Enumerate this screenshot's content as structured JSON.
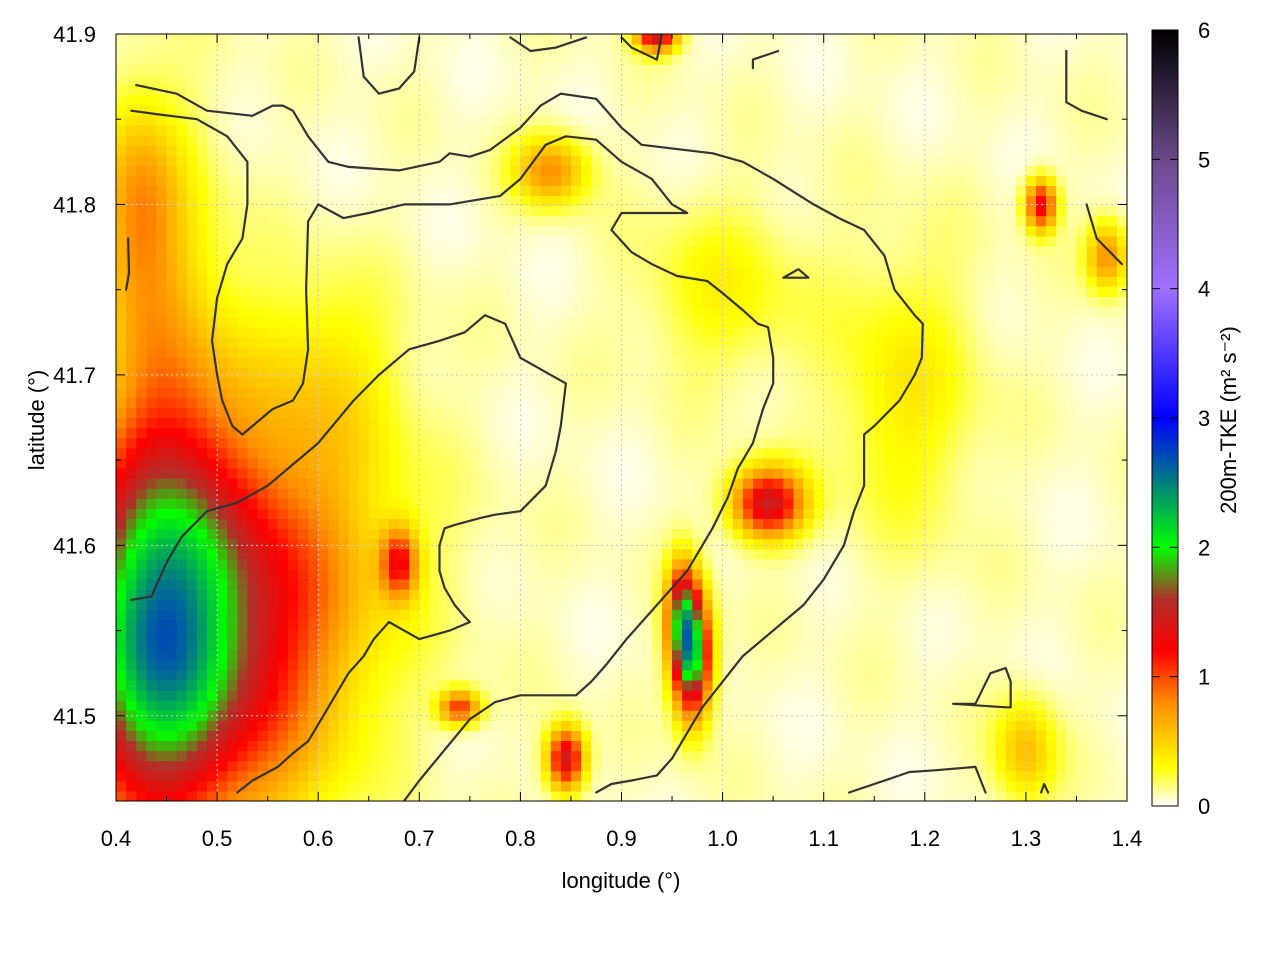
{
  "chart_data": {
    "type": "heatmap",
    "title": "",
    "xlabel": "longitude (°)",
    "ylabel": "latitude (°)",
    "colorbar_label": "200m-TKE (m² s⁻²)",
    "xlim": [
      0.4,
      1.4
    ],
    "ylim": [
      41.45,
      41.9
    ],
    "xticks": [
      "0.4",
      "0.5",
      "0.6",
      "0.7",
      "0.8",
      "0.9",
      "1.0",
      "1.1",
      "1.2",
      "1.3",
      "1.4"
    ],
    "xtick_values": [
      0.4,
      0.5,
      0.6,
      0.7,
      0.8,
      0.9,
      1.0,
      1.1,
      1.2,
      1.3,
      1.4
    ],
    "yticks": [
      "41.5",
      "41.6",
      "41.7",
      "41.8",
      "41.9"
    ],
    "ytick_values": [
      41.5,
      41.6,
      41.7,
      41.8,
      41.9
    ],
    "colorbar_range": [
      0,
      6
    ],
    "colorbar_ticks": [
      "0",
      "1",
      "2",
      "3",
      "4",
      "5",
      "6"
    ],
    "colorbar_tick_values": [
      0,
      1,
      2,
      3,
      4,
      5,
      6
    ],
    "grid": true,
    "colormap": [
      {
        "v": 0.0,
        "c": "#ffffff"
      },
      {
        "v": 0.3,
        "c": "#ffff00"
      },
      {
        "v": 0.8,
        "c": "#ff8c00"
      },
      {
        "v": 1.2,
        "c": "#ff0000"
      },
      {
        "v": 1.6,
        "c": "#b0302a"
      },
      {
        "v": 2.0,
        "c": "#00ff00"
      },
      {
        "v": 3.0,
        "c": "#0000ff"
      },
      {
        "v": 4.0,
        "c": "#a070ff"
      },
      {
        "v": 5.0,
        "c": "#6a4a8a"
      },
      {
        "v": 6.0,
        "c": "#000000"
      }
    ],
    "tke_field": {
      "background": 0.12,
      "hotspots": [
        {
          "lon": 0.49,
          "lat": 41.52,
          "rx": 0.12,
          "ry": 0.09,
          "val": 1.15
        },
        {
          "lon": 0.43,
          "lat": 41.54,
          "rx": 0.07,
          "ry": 0.1,
          "val": 1.2
        },
        {
          "lon": 0.52,
          "lat": 41.6,
          "rx": 0.14,
          "ry": 0.08,
          "val": 0.75
        },
        {
          "lon": 0.45,
          "lat": 41.68,
          "rx": 0.06,
          "ry": 0.13,
          "val": 0.6
        },
        {
          "lon": 0.42,
          "lat": 41.8,
          "rx": 0.04,
          "ry": 0.06,
          "val": 0.55
        },
        {
          "lon": 0.68,
          "lat": 41.59,
          "rx": 0.018,
          "ry": 0.02,
          "val": 1.0
        },
        {
          "lon": 0.74,
          "lat": 41.505,
          "rx": 0.02,
          "ry": 0.01,
          "val": 1.0
        },
        {
          "lon": 0.845,
          "lat": 41.475,
          "rx": 0.018,
          "ry": 0.018,
          "val": 1.4
        },
        {
          "lon": 0.83,
          "lat": 41.82,
          "rx": 0.035,
          "ry": 0.02,
          "val": 0.7
        },
        {
          "lon": 0.97,
          "lat": 41.535,
          "rx": 0.018,
          "ry": 0.035,
          "val": 2.0
        },
        {
          "lon": 0.96,
          "lat": 41.56,
          "rx": 0.015,
          "ry": 0.03,
          "val": 1.3
        },
        {
          "lon": 1.045,
          "lat": 41.625,
          "rx": 0.035,
          "ry": 0.02,
          "val": 1.4
        },
        {
          "lon": 0.935,
          "lat": 41.9,
          "rx": 0.02,
          "ry": 0.01,
          "val": 1.4
        },
        {
          "lon": 1.315,
          "lat": 41.8,
          "rx": 0.015,
          "ry": 0.015,
          "val": 1.2
        },
        {
          "lon": 1.38,
          "lat": 41.77,
          "rx": 0.02,
          "ry": 0.02,
          "val": 0.7
        },
        {
          "lon": 1.3,
          "lat": 41.48,
          "rx": 0.03,
          "ry": 0.03,
          "val": 0.5
        },
        {
          "lon": 1.0,
          "lat": 41.75,
          "rx": 0.08,
          "ry": 0.05,
          "val": 0.25
        },
        {
          "lon": 1.18,
          "lat": 41.69,
          "rx": 0.07,
          "ry": 0.08,
          "val": 0.3
        },
        {
          "lon": 0.6,
          "lat": 41.7,
          "rx": 0.08,
          "ry": 0.06,
          "val": 0.3
        }
      ]
    },
    "contours": [
      [
        [
          0.42,
          41.87
        ],
        [
          0.46,
          41.865
        ],
        [
          0.49,
          41.855
        ],
        [
          0.535,
          41.852
        ],
        [
          0.555,
          41.858
        ],
        [
          0.565,
          41.858
        ],
        [
          0.575,
          41.855
        ],
        [
          0.59,
          41.84
        ],
        [
          0.61,
          41.825
        ],
        [
          0.63,
          41.822
        ],
        [
          0.68,
          41.82
        ],
        [
          0.72,
          41.825
        ],
        [
          0.73,
          41.83
        ],
        [
          0.75,
          41.828
        ],
        [
          0.77,
          41.832
        ],
        [
          0.8,
          41.845
        ],
        [
          0.82,
          41.858
        ],
        [
          0.84,
          41.865
        ],
        [
          0.875,
          41.862
        ],
        [
          0.9,
          41.845
        ],
        [
          0.92,
          41.835
        ],
        [
          0.99,
          41.83
        ],
        [
          1.02,
          41.825
        ],
        [
          1.05,
          41.815
        ],
        [
          1.09,
          41.8
        ],
        [
          1.115,
          41.792
        ],
        [
          1.14,
          41.785
        ],
        [
          1.16,
          41.77
        ],
        [
          1.17,
          41.75
        ],
        [
          1.19,
          41.735
        ],
        [
          1.198,
          41.73
        ],
        [
          1.197,
          41.71
        ],
        [
          1.19,
          41.7
        ],
        [
          1.175,
          41.685
        ],
        [
          1.15,
          41.67
        ],
        [
          1.14,
          41.665
        ],
        [
          1.14,
          41.635
        ],
        [
          1.13,
          41.62
        ],
        [
          1.12,
          41.6
        ],
        [
          1.1,
          41.58
        ],
        [
          1.08,
          41.565
        ],
        [
          1.06,
          41.555
        ],
        [
          1.04,
          41.545
        ],
        [
          1.02,
          41.535
        ],
        [
          1.0,
          41.52
        ],
        [
          0.98,
          41.505
        ],
        [
          0.965,
          41.49
        ],
        [
          0.95,
          41.475
        ],
        [
          0.935,
          41.465
        ],
        [
          0.91,
          41.462
        ],
        [
          0.89,
          41.46
        ],
        [
          0.875,
          41.455
        ]
      ],
      [
        [
          0.415,
          41.855
        ],
        [
          0.44,
          41.853
        ],
        [
          0.48,
          41.85
        ],
        [
          0.51,
          41.84
        ],
        [
          0.53,
          41.825
        ],
        [
          0.53,
          41.8
        ],
        [
          0.525,
          41.78
        ],
        [
          0.51,
          41.765
        ],
        [
          0.5,
          41.745
        ],
        [
          0.495,
          41.72
        ],
        [
          0.5,
          41.7
        ],
        [
          0.505,
          41.685
        ],
        [
          0.515,
          41.67
        ],
        [
          0.525,
          41.665
        ],
        [
          0.535,
          41.67
        ],
        [
          0.555,
          41.68
        ],
        [
          0.575,
          41.685
        ],
        [
          0.585,
          41.695
        ],
        [
          0.59,
          41.715
        ],
        [
          0.588,
          41.75
        ],
        [
          0.59,
          41.79
        ],
        [
          0.6,
          41.8
        ],
        [
          0.625,
          41.792
        ],
        [
          0.65,
          41.795
        ],
        [
          0.685,
          41.8
        ],
        [
          0.73,
          41.8
        ],
        [
          0.78,
          41.805
        ],
        [
          0.8,
          41.815
        ],
        [
          0.825,
          41.835
        ],
        [
          0.845,
          41.84
        ],
        [
          0.875,
          41.838
        ],
        [
          0.9,
          41.825
        ],
        [
          0.93,
          41.815
        ],
        [
          0.95,
          41.8
        ],
        [
          0.965,
          41.795
        ],
        [
          0.92,
          41.795
        ],
        [
          0.9,
          41.795
        ],
        [
          0.89,
          41.785
        ],
        [
          0.91,
          41.772
        ],
        [
          0.93,
          41.765
        ],
        [
          0.955,
          41.758
        ],
        [
          0.985,
          41.755
        ],
        [
          1.0,
          41.748
        ],
        [
          1.02,
          41.738
        ],
        [
          1.035,
          41.73
        ],
        [
          1.045,
          41.728
        ],
        [
          1.05,
          41.71
        ],
        [
          1.05,
          41.695
        ],
        [
          1.04,
          41.68
        ],
        [
          1.03,
          41.66
        ],
        [
          1.015,
          41.645
        ],
        [
          1.005,
          41.628
        ],
        [
          0.99,
          41.61
        ],
        [
          0.975,
          41.595
        ],
        [
          0.965,
          41.585
        ],
        [
          0.95,
          41.575
        ],
        [
          0.935,
          41.565
        ],
        [
          0.905,
          41.545
        ],
        [
          0.885,
          41.53
        ],
        [
          0.87,
          41.52
        ],
        [
          0.855,
          41.512
        ],
        [
          0.8,
          41.512
        ],
        [
          0.775,
          41.508
        ],
        [
          0.75,
          41.498
        ],
        [
          0.725,
          41.48
        ],
        [
          0.7,
          41.462
        ],
        [
          0.685,
          41.45
        ]
      ],
      [
        [
          0.412,
          41.78
        ],
        [
          0.413,
          41.76
        ],
        [
          0.41,
          41.75
        ]
      ],
      [
        [
          0.415,
          41.568
        ],
        [
          0.435,
          41.57
        ],
        [
          0.45,
          41.59
        ],
        [
          0.465,
          41.605
        ],
        [
          0.49,
          41.62
        ],
        [
          0.52,
          41.625
        ],
        [
          0.55,
          41.635
        ],
        [
          0.57,
          41.645
        ],
        [
          0.6,
          41.66
        ],
        [
          0.635,
          41.685
        ],
        [
          0.66,
          41.7
        ],
        [
          0.69,
          41.715
        ],
        [
          0.72,
          41.72
        ],
        [
          0.745,
          41.725
        ],
        [
          0.765,
          41.735
        ],
        [
          0.785,
          41.73
        ],
        [
          0.8,
          41.71
        ],
        [
          0.83,
          41.7
        ],
        [
          0.845,
          41.695
        ],
        [
          0.84,
          41.67
        ],
        [
          0.835,
          41.655
        ],
        [
          0.825,
          41.635
        ],
        [
          0.8,
          41.62
        ],
        [
          0.775,
          41.618
        ],
        [
          0.76,
          41.616
        ],
        [
          0.735,
          41.612
        ],
        [
          0.725,
          41.61
        ],
        [
          0.72,
          41.6
        ],
        [
          0.72,
          41.585
        ],
        [
          0.725,
          41.575
        ],
        [
          0.735,
          41.565
        ],
        [
          0.745,
          41.558
        ],
        [
          0.75,
          41.555
        ],
        [
          0.73,
          41.55
        ],
        [
          0.7,
          41.545
        ],
        [
          0.685,
          41.55
        ],
        [
          0.67,
          41.555
        ],
        [
          0.655,
          41.545
        ],
        [
          0.645,
          41.535
        ],
        [
          0.63,
          41.525
        ],
        [
          0.615,
          41.51
        ],
        [
          0.605,
          41.5
        ],
        [
          0.59,
          41.485
        ],
        [
          0.575,
          41.478
        ],
        [
          0.56,
          41.47
        ],
        [
          0.535,
          41.462
        ],
        [
          0.52,
          41.455
        ]
      ],
      [
        [
          0.64,
          41.898
        ],
        [
          0.645,
          41.875
        ],
        [
          0.66,
          41.865
        ],
        [
          0.68,
          41.868
        ],
        [
          0.695,
          41.878
        ],
        [
          0.7,
          41.898
        ]
      ],
      [
        [
          0.79,
          41.898
        ],
        [
          0.81,
          41.89
        ],
        [
          0.835,
          41.892
        ],
        [
          0.865,
          41.898
        ]
      ],
      [
        [
          0.9,
          41.898
        ],
        [
          0.91,
          41.892
        ],
        [
          0.935,
          41.885
        ],
        [
          0.94,
          41.9
        ]
      ],
      [
        [
          1.03,
          41.88
        ],
        [
          1.03,
          41.885
        ],
        [
          1.055,
          41.89
        ]
      ],
      [
        [
          1.36,
          41.8
        ],
        [
          1.37,
          41.78
        ],
        [
          1.395,
          41.765
        ]
      ],
      [
        [
          1.34,
          41.89
        ],
        [
          1.34,
          41.86
        ],
        [
          1.355,
          41.855
        ],
        [
          1.38,
          41.85
        ]
      ],
      [
        [
          1.06,
          41.757
        ],
        [
          1.075,
          41.762
        ],
        [
          1.085,
          41.757
        ],
        [
          1.06,
          41.757
        ]
      ],
      [
        [
          1.228,
          41.507
        ],
        [
          1.25,
          41.507
        ],
        [
          1.265,
          41.525
        ],
        [
          1.28,
          41.528
        ],
        [
          1.285,
          41.52
        ],
        [
          1.285,
          41.505
        ],
        [
          1.28,
          41.505
        ],
        [
          1.228,
          41.507
        ]
      ],
      [
        [
          1.125,
          41.455
        ],
        [
          1.15,
          41.46
        ],
        [
          1.185,
          41.467
        ],
        [
          1.21,
          41.468
        ],
        [
          1.25,
          41.47
        ],
        [
          1.26,
          41.455
        ]
      ],
      [
        [
          1.315,
          41.455
        ],
        [
          1.318,
          41.46
        ],
        [
          1.322,
          41.455
        ]
      ]
    ]
  }
}
